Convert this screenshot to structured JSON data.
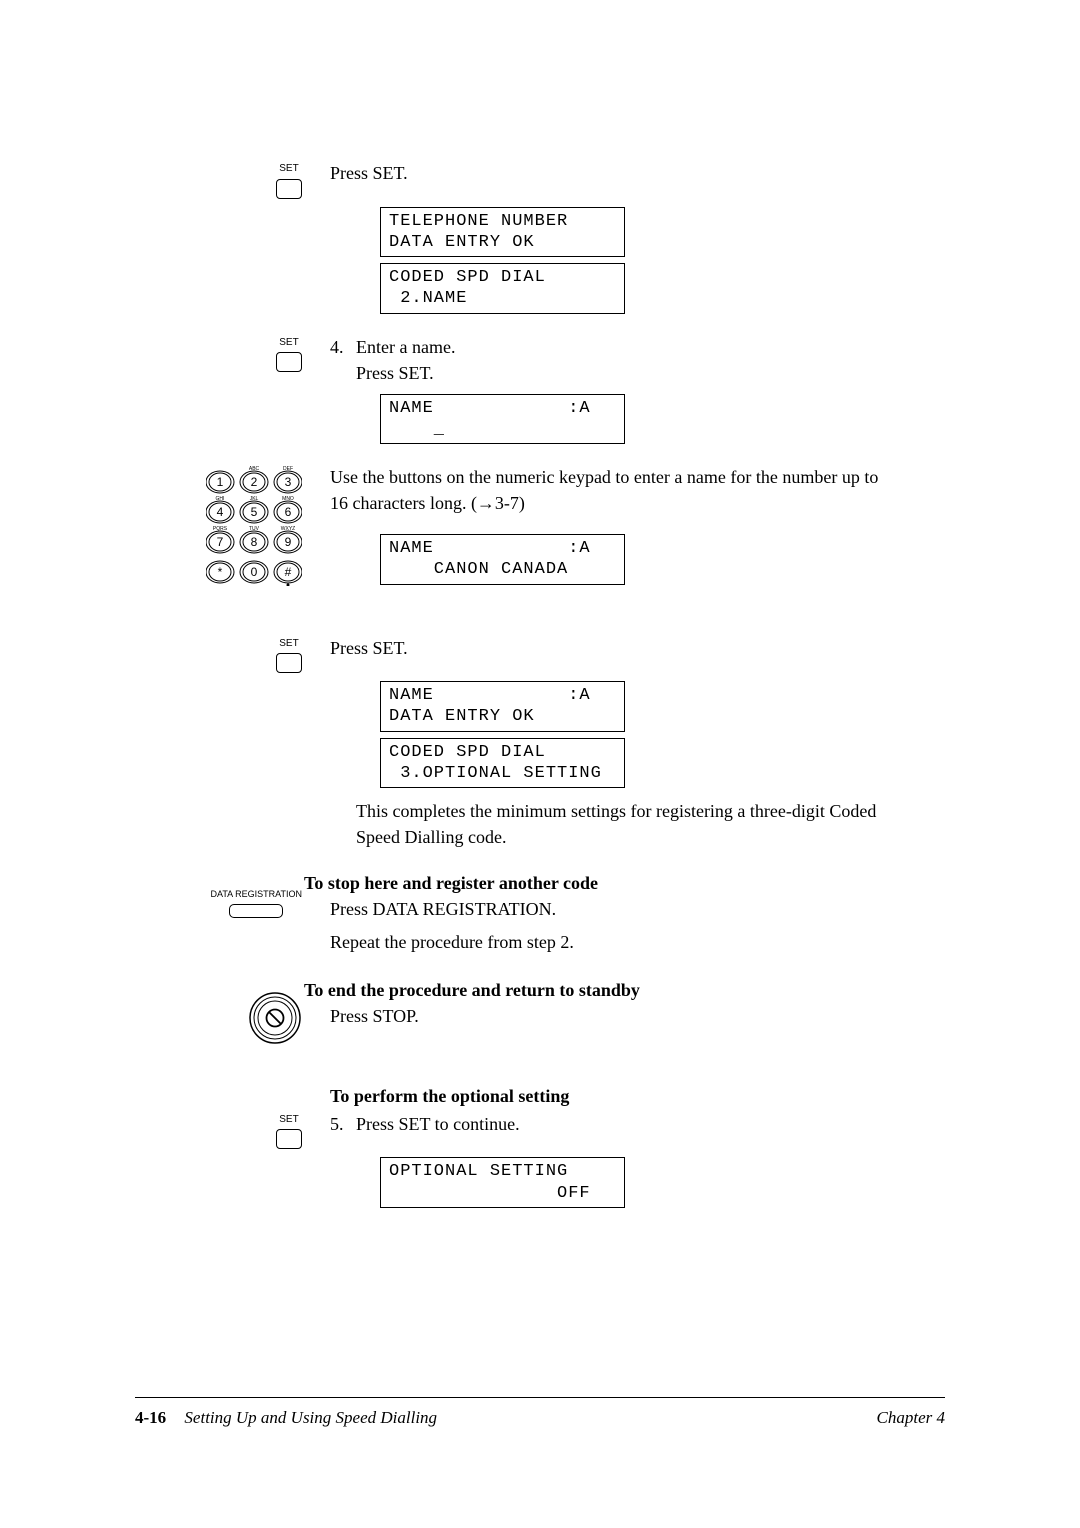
{
  "icons": {
    "set_label": "SET",
    "datareg_label": "DATA REGISTRATION"
  },
  "step3": {
    "press_set": "Press SET.",
    "lcd1_l1": "TELEPHONE NUMBER",
    "lcd1_l2": "DATA ENTRY OK",
    "lcd2_l1": "CODED SPD DIAL",
    "lcd2_l2": " 2.NAME"
  },
  "step4": {
    "num": "4.",
    "enter_name": "Enter a name.",
    "press_set": "Press SET.",
    "lcd1_l1": "NAME            :A",
    "lcd1_l2": "    _",
    "use_buttons": "Use the buttons on the numeric keypad to enter a name for the number up to 16 characters long. (→3-7)",
    "lcd2_l1": "NAME            :A",
    "lcd2_l2": "    CANON CANADA"
  },
  "step4b": {
    "press_set": "Press SET.",
    "lcd1_l1": "NAME            :A",
    "lcd1_l2": "DATA ENTRY OK",
    "lcd2_l1": "CODED SPD DIAL",
    "lcd2_l2": " 3.OPTIONAL SETTING",
    "completes": "This completes the minimum settings for registering a three-digit Coded Speed Dialling code."
  },
  "stop_here": {
    "heading": "To stop here and register another code",
    "press": "Press DATA REGISTRATION.",
    "repeat": "Repeat the procedure from step 2."
  },
  "end_proc": {
    "heading": "To end the procedure and return to standby",
    "press": "Press STOP."
  },
  "optional": {
    "heading": "To perform the optional setting",
    "num": "5.",
    "press": "Press SET to continue.",
    "lcd_l1": "OPTIONAL SETTING",
    "lcd_l2": "               OFF"
  },
  "footer": {
    "page_num": "4-16",
    "section": "Setting Up and Using Speed Dialling",
    "chapter": "Chapter 4"
  },
  "keypad": {
    "keys": [
      "1",
      "2",
      "3",
      "4",
      "5",
      "6",
      "7",
      "8",
      "9",
      "*",
      "0",
      "#"
    ],
    "sub": [
      "",
      "ABC",
      "DEF",
      "GHI",
      "JKL",
      "MNO",
      "PQRS",
      "TUV",
      "WXYZ",
      "",
      "",
      ""
    ]
  }
}
